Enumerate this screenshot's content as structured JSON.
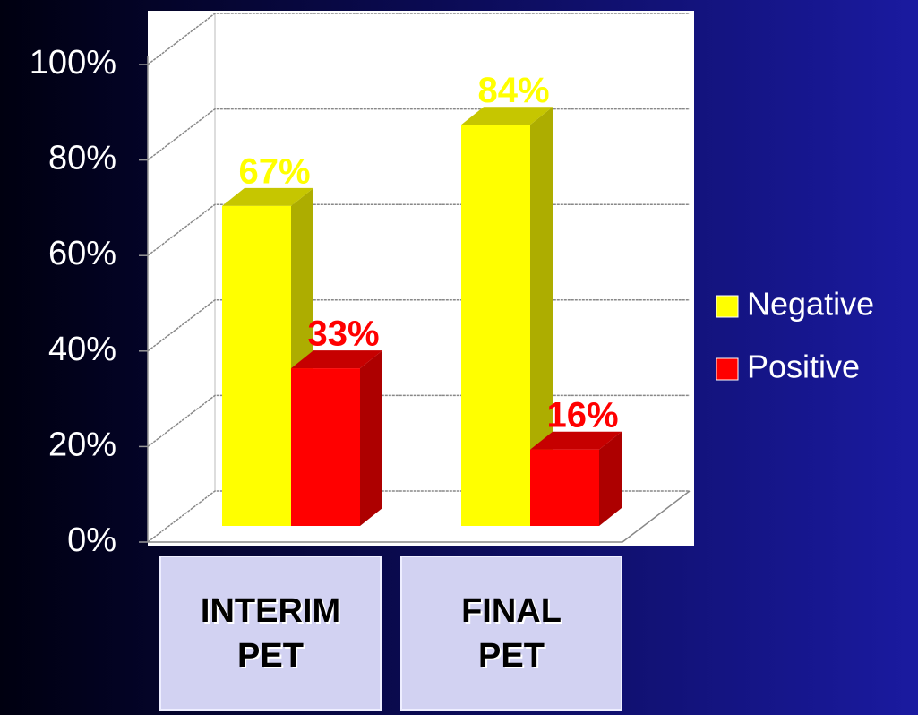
{
  "chart_data": {
    "type": "bar3d",
    "categories": [
      "INTERIM PET",
      "FINAL PET"
    ],
    "series": [
      {
        "name": "Negative",
        "color": "#ffff00",
        "values": [
          67,
          84
        ],
        "value_labels": [
          "67%",
          "84%"
        ]
      },
      {
        "name": "Positive",
        "color": "#ff0000",
        "values": [
          33,
          16
        ],
        "value_labels": [
          "33%",
          "16%"
        ]
      }
    ],
    "ylim": [
      0,
      100
    ],
    "yticks": [
      {
        "value": 0,
        "label": "0%"
      },
      {
        "value": 20,
        "label": "20%"
      },
      {
        "value": 40,
        "label": "40%"
      },
      {
        "value": 60,
        "label": "60%"
      },
      {
        "value": 80,
        "label": "80%"
      },
      {
        "value": 100,
        "label": "100%"
      }
    ],
    "grid": true,
    "legend": "right"
  }
}
